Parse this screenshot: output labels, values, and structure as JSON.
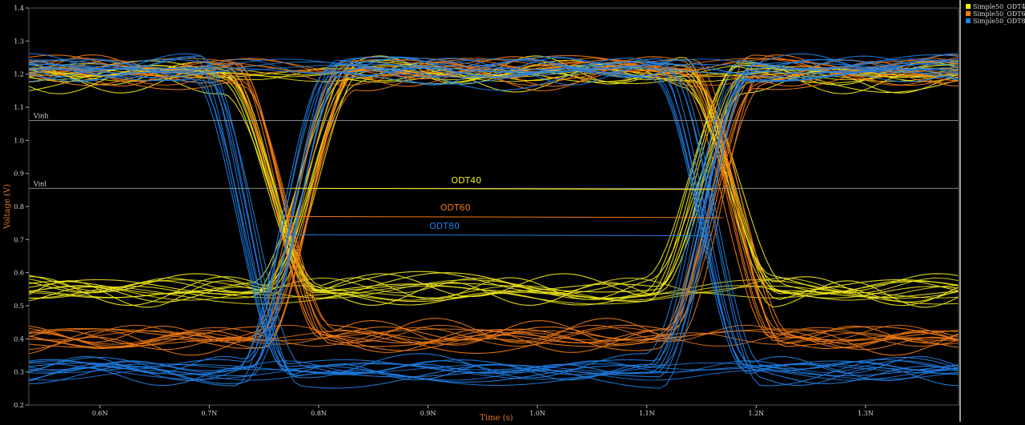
{
  "chart_data": {
    "type": "line",
    "title": "",
    "xlabel": "Time (s)",
    "ylabel": "Voltage (V)",
    "xlim": [
      0.535,
      1.385
    ],
    "ylim": [
      0.2,
      1.4
    ],
    "x_ticks": [
      {
        "v": 0.6,
        "label": "0.6N"
      },
      {
        "v": 0.7,
        "label": "0.7N"
      },
      {
        "v": 0.8,
        "label": "0.8N"
      },
      {
        "v": 0.9,
        "label": "0.9N"
      },
      {
        "v": 1.0,
        "label": "1.0N"
      },
      {
        "v": 1.1,
        "label": "1.1N"
      },
      {
        "v": 1.2,
        "label": "1.2N"
      },
      {
        "v": 1.3,
        "label": "1.3N"
      }
    ],
    "y_ticks": [
      {
        "v": 0.2,
        "label": "0.2"
      },
      {
        "v": 0.3,
        "label": "0.3"
      },
      {
        "v": 0.4,
        "label": "0.4"
      },
      {
        "v": 0.5,
        "label": "0.5"
      },
      {
        "v": 0.6,
        "label": "0.6"
      },
      {
        "v": 0.7,
        "label": "0.7"
      },
      {
        "v": 0.8,
        "label": "0.8"
      },
      {
        "v": 0.9,
        "label": "0.9"
      },
      {
        "v": 1.0,
        "label": "1.0"
      },
      {
        "v": 1.1,
        "label": "1.1"
      },
      {
        "v": 1.2,
        "label": "1.2"
      },
      {
        "v": 1.3,
        "label": "1.3"
      },
      {
        "v": 1.4,
        "label": "1.4"
      }
    ],
    "reference_lines": [
      {
        "label": "Vinh",
        "y": 1.06,
        "color": "#9a9a9a"
      },
      {
        "label": "Vinl",
        "y": 0.855,
        "color": "#9a9a9a"
      }
    ],
    "legend": {
      "position": "top-right",
      "entries": [
        {
          "label": "Simple50_ODT4",
          "color": "#f2ea1a"
        },
        {
          "label": "Simple50_ODT6",
          "color": "#f07a14"
        },
        {
          "label": "Simple50_ODT8",
          "color": "#1e7fe6"
        }
      ]
    },
    "series": [
      {
        "name": "Simple50_ODT4",
        "color": "#f2ea1a",
        "high": 1.2,
        "low": 0.545,
        "fall_t": 0.755,
        "rise_t": 0.79,
        "fall_t2": 1.175,
        "rise_t2": 1.145
      },
      {
        "name": "Simple50_ODT6",
        "color": "#f07a14",
        "high": 1.21,
        "low": 0.4,
        "fall_t": 0.765,
        "rise_t": 0.785,
        "fall_t2": 1.18,
        "rise_t2": 1.16
      },
      {
        "name": "Simple50_ODT8",
        "color": "#1e7fe6",
        "high": 1.215,
        "low": 0.3,
        "fall_t": 0.735,
        "rise_t": 0.775,
        "fall_t2": 1.155,
        "rise_t2": 1.15
      }
    ],
    "annotations": [
      {
        "text": "ODT40",
        "color": "#f2ea1a",
        "y": 0.855,
        "x1": 0.775,
        "x2": 1.16,
        "label_x": 0.935,
        "label_y": 0.87
      },
      {
        "text": "ODT60",
        "color": "#f07a14",
        "y": 0.77,
        "x1": 0.77,
        "x2": 1.17,
        "label_x": 0.925,
        "label_y": 0.788
      },
      {
        "text": "ODT80",
        "color": "#1e7fe6",
        "y": 0.715,
        "x1": 0.77,
        "x2": 1.16,
        "label_x": 0.915,
        "label_y": 0.732
      }
    ]
  }
}
